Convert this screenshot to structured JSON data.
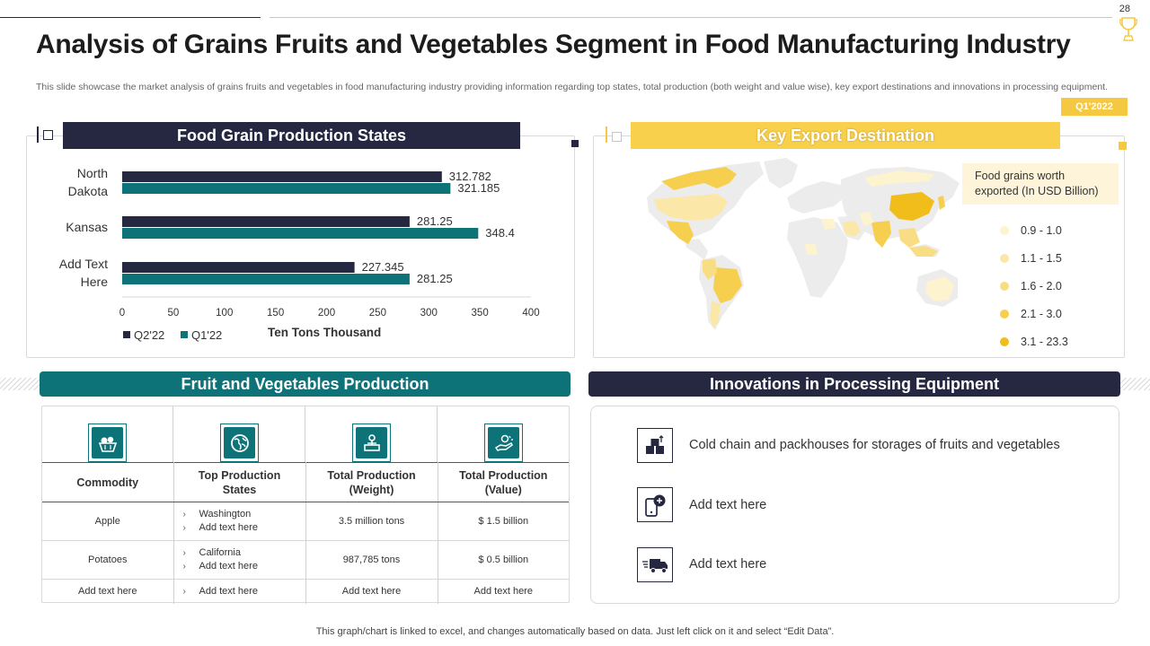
{
  "page": {
    "number": "28",
    "title": "Analysis of Grains Fruits and Vegetables Segment in Food Manufacturing Industry",
    "subtitle": "This slide showcase the market analysis of grains fruits and vegetables in food manufacturing industry providing information regarding top states, total production (both weight and value wise), key export destinations and innovations in processing equipment.",
    "quarter_badge": "Q1'2022",
    "footer": "This graph/chart is linked to excel, and changes automatically based on data. Just left click on it and select “Edit Data”."
  },
  "grain_panel": {
    "heading": "Food Grain Production States"
  },
  "chart_data": {
    "type": "bar",
    "orientation": "horizontal",
    "title": "Food Grain Production States",
    "categories": [
      "North Dakota",
      "Kansas",
      "Add Text Here"
    ],
    "category_lines": [
      [
        "North",
        "Dakota"
      ],
      [
        "Kansas"
      ],
      [
        "Add Text",
        "Here"
      ]
    ],
    "series": [
      {
        "name": "Q2'22",
        "color": "#262842",
        "values": [
          312.782,
          281.25,
          227.345
        ],
        "labels": [
          "312.782",
          "281.25",
          "227.345"
        ]
      },
      {
        "name": "Q1'22",
        "color": "#0d7378",
        "values": [
          321.185,
          348.4,
          281.25
        ],
        "labels": [
          "321.185",
          "348.4",
          "281.25"
        ]
      }
    ],
    "xlim": [
      0,
      400
    ],
    "xticks": [
      "0",
      "50",
      "100",
      "150",
      "200",
      "250",
      "300",
      "350",
      "400"
    ],
    "xlabel": "Ten Tons Thousand",
    "legend_position": "bottom-left"
  },
  "export_panel": {
    "heading": "Key Export Destination",
    "legend_title": "Food grains worth exported (In USD Billion)",
    "legend_title_lines": [
      "Food grains worth",
      "exported (In USD Billion)"
    ],
    "ranges": [
      {
        "label": "0.9 - 1.0",
        "color": "#fdf3cf"
      },
      {
        "label": "1.1 - 1.5",
        "color": "#fbe8a8"
      },
      {
        "label": "1.6 - 2.0",
        "color": "#f9dd84"
      },
      {
        "label": "2.1 - 3.0",
        "color": "#f6cf4e"
      },
      {
        "label": "3.1 - 23.3",
        "color": "#f0bd1a"
      }
    ]
  },
  "fruit_panel": {
    "heading": "Fruit and Vegetables Production",
    "icons": [
      "apple-basket-icon",
      "globe-icon",
      "weight-scale-icon",
      "hand-value-icon"
    ],
    "headers": [
      "Commodity",
      "Top Production States",
      "Total Production (Weight)",
      "Total Production (Value)"
    ],
    "header_lines": [
      [
        "Commodity"
      ],
      [
        "Top Production",
        "States"
      ],
      [
        "Total Production",
        "(Weight)"
      ],
      [
        "Total Production",
        "(Value)"
      ]
    ],
    "rows": [
      {
        "commodity": "Apple",
        "states": [
          "Washington",
          "Add text here"
        ],
        "weight": "3.5 million tons",
        "value": "$ 1.5 billion"
      },
      {
        "commodity": "Potatoes",
        "states": [
          "California",
          "Add text here"
        ],
        "weight": "987,785 tons",
        "value": "$ 0.5 billion"
      },
      {
        "commodity": "Add text here",
        "states": [
          "Add text here"
        ],
        "weight": "Add text here",
        "value": "Add text here"
      }
    ]
  },
  "innovation_panel": {
    "heading": "Innovations in Processing Equipment",
    "items": [
      {
        "icon": "cold-storage-boxes-icon",
        "text": "Cold chain and packhouses for storages of fruits and vegetables"
      },
      {
        "icon": "mobile-chat-icon",
        "text": "Add text here"
      },
      {
        "icon": "delivery-truck-icon",
        "text": "Add text here"
      }
    ]
  }
}
